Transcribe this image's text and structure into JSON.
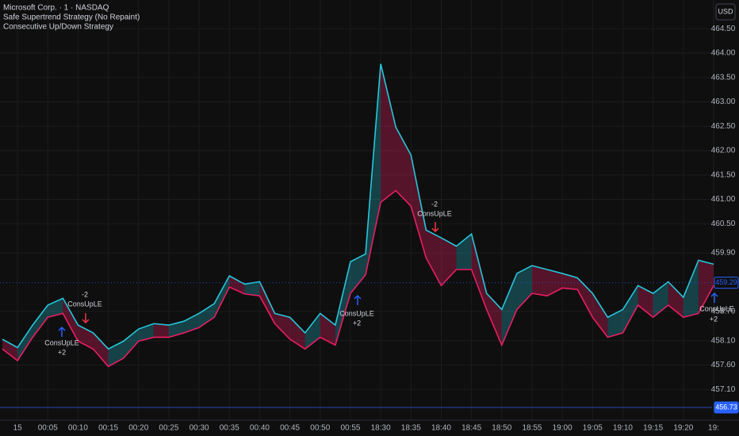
{
  "header": {
    "symbol": "Microsoft Corp. · 1 · NASDAQ",
    "indicators": [
      "Safe Supertrend Strategy (No Repaint)",
      "Consecutive Up/Down Strategy"
    ],
    "currency": "USD"
  },
  "chart_data": {
    "type": "line",
    "categories": [
      null,
      "15",
      null,
      "00:05",
      null,
      "00:10",
      null,
      "00:15",
      null,
      "00:20",
      null,
      "00:25",
      null,
      "00:30",
      null,
      "00:35",
      null,
      "00:40",
      null,
      "00:45",
      null,
      "00:50",
      null,
      "00:55",
      null,
      "18:30",
      null,
      "18:35",
      null,
      "18:40",
      null,
      "18:45",
      null,
      "18:50",
      null,
      "18:55",
      null,
      "19:00",
      null,
      "19:05",
      null,
      "19:10",
      null,
      "19:15",
      null,
      "19:20",
      null,
      "19:"
    ],
    "series": [
      {
        "color": "#26c6da",
        "values": [
          458.13,
          457.96,
          458.42,
          458.83,
          458.97,
          458.42,
          458.26,
          457.93,
          458.09,
          458.34,
          458.45,
          458.42,
          458.5,
          458.66,
          458.86,
          459.43,
          459.26,
          459.31,
          458.66,
          458.58,
          458.26,
          458.66,
          458.42,
          459.72,
          459.88,
          463.78,
          462.48,
          461.91,
          460.37,
          460.21,
          460.04,
          460.29,
          459.07,
          458.74,
          459.48,
          459.64,
          459.56,
          459.48,
          459.39,
          459.07,
          458.58,
          458.74,
          459.23,
          459.07,
          459.31,
          458.99,
          459.75,
          459.67
        ]
      },
      {
        "color": "#e91e63",
        "values": [
          457.93,
          457.69,
          458.17,
          458.58,
          458.66,
          458.09,
          457.93,
          457.57,
          457.74,
          458.09,
          458.17,
          458.17,
          458.26,
          458.37,
          458.58,
          459.2,
          459.06,
          459.02,
          458.45,
          458.13,
          457.93,
          458.17,
          458.01,
          459.07,
          459.45,
          460.94,
          461.18,
          460.86,
          459.8,
          459.23,
          459.56,
          459.56,
          458.74,
          458.01,
          458.74,
          459.07,
          459.02,
          459.18,
          459.15,
          458.58,
          458.17,
          458.26,
          458.83,
          458.58,
          458.83,
          458.58,
          458.66,
          459.23
        ]
      }
    ],
    "ylim": [
      456.47,
      465.09
    ],
    "yticks": [
      {
        "value": 457.1,
        "label": "457.10"
      },
      {
        "value": 457.6,
        "label": "457.60"
      },
      {
        "value": 458.1,
        "label": "458.10"
      },
      {
        "value": 458.7,
        "label": "458.70"
      },
      {
        "value": 459.9,
        "label": "459.90"
      },
      {
        "value": 460.5,
        "label": "460.50"
      },
      {
        "value": 461.0,
        "label": "461.00"
      },
      {
        "value": 461.5,
        "label": "461.50"
      },
      {
        "value": 462.0,
        "label": "462.00"
      },
      {
        "value": 462.5,
        "label": "462.50"
      },
      {
        "value": 463.0,
        "label": "463.00"
      },
      {
        "value": 463.5,
        "label": "463.50"
      },
      {
        "value": 464.0,
        "label": "464.00"
      },
      {
        "value": 464.5,
        "label": "464.50"
      }
    ],
    "price_lines": [
      {
        "value": 459.29,
        "color": "#2962ff"
      },
      {
        "value": 456.73,
        "color": "#2962ff"
      }
    ],
    "annotations": [
      "-2",
      "ConsUpLE",
      "ConsUpLE",
      "+2",
      "ConsUpLE",
      "+2",
      "-2",
      "ConsUpLE",
      "ConsUpLE",
      "+2"
    ],
    "grid": true
  }
}
